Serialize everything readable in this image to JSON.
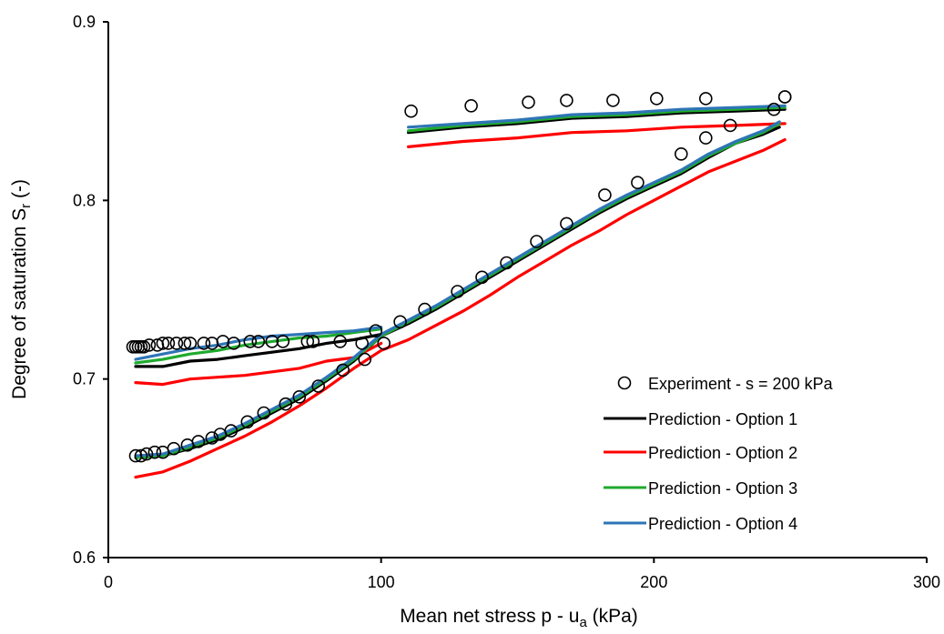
{
  "chart_data": {
    "type": "scatter",
    "xlabel": "Mean net stress p - u",
    "xlabel_sub": "a",
    "xlabel_suffix": " (kPa)",
    "ylabel": "Degree of saturation S",
    "ylabel_sub": "r",
    "ylabel_suffix": " (-)",
    "xlim": [
      0,
      300
    ],
    "ylim": [
      0.6,
      0.9
    ],
    "xticks": [
      0,
      100,
      200,
      300
    ],
    "yticks": [
      0.6,
      0.7,
      0.8,
      0.9
    ],
    "xtick_labels": [
      "0",
      "100",
      "200",
      "300"
    ],
    "ytick_labels": [
      "0.6",
      "0.7",
      "0.8",
      "0.9"
    ],
    "grid": false,
    "legend_position": "bottom-right",
    "experiment": {
      "name": "Experiment - s = 200 kPa",
      "marker": "open-circle",
      "x": [
        9,
        10,
        11,
        12,
        13,
        15,
        18,
        20,
        22,
        25,
        28,
        30,
        35,
        38,
        42,
        46,
        52,
        55,
        60,
        64,
        73,
        75,
        85,
        93,
        98,
        248,
        244,
        228,
        219,
        210,
        194,
        182,
        168,
        157,
        146,
        137,
        128,
        116,
        107,
        101,
        94,
        86,
        77,
        70,
        65,
        57,
        51,
        45,
        41,
        38,
        33,
        29,
        24,
        20,
        17,
        14,
        12,
        10,
        111,
        133,
        154,
        168,
        185,
        201,
        219,
        248
      ],
      "y": [
        0.718,
        0.718,
        0.718,
        0.718,
        0.718,
        0.719,
        0.719,
        0.72,
        0.72,
        0.72,
        0.72,
        0.72,
        0.72,
        0.72,
        0.721,
        0.72,
        0.721,
        0.721,
        0.721,
        0.721,
        0.721,
        0.721,
        0.721,
        0.72,
        0.727,
        0.858,
        0.851,
        0.842,
        0.835,
        0.826,
        0.81,
        0.803,
        0.787,
        0.777,
        0.765,
        0.757,
        0.749,
        0.739,
        0.732,
        0.72,
        0.711,
        0.705,
        0.696,
        0.69,
        0.686,
        0.681,
        0.676,
        0.671,
        0.669,
        0.667,
        0.665,
        0.663,
        0.661,
        0.659,
        0.659,
        0.658,
        0.657,
        0.657,
        0.85,
        0.853,
        0.855,
        0.856,
        0.856,
        0.857,
        0.857,
        0.858
      ]
    },
    "series": [
      {
        "name": "Prediction - Option 1",
        "color": "#000000",
        "segments": [
          {
            "x": [
              10,
              20,
              30,
              40,
              50,
              60,
              70,
              80,
              90,
              100
            ],
            "y": [
              0.707,
              0.707,
              0.71,
              0.711,
              0.713,
              0.715,
              0.717,
              0.72,
              0.722,
              0.725
            ]
          },
          {
            "x": [
              10,
              20,
              30,
              40,
              50,
              60,
              70,
              80,
              90,
              100,
              110,
              120,
              130,
              140,
              150,
              160,
              170,
              180,
              190,
              200,
              210,
              220,
              230,
              240,
              246
            ],
            "y": [
              0.656,
              0.657,
              0.661,
              0.666,
              0.673,
              0.681,
              0.689,
              0.699,
              0.71,
              0.724,
              0.731,
              0.739,
              0.748,
              0.757,
              0.766,
              0.775,
              0.784,
              0.793,
              0.801,
              0.808,
              0.815,
              0.824,
              0.832,
              0.837,
              0.841
            ]
          },
          {
            "x": [
              110,
              130,
              150,
              170,
              190,
              210,
              230,
              248
            ],
            "y": [
              0.838,
              0.841,
              0.843,
              0.846,
              0.847,
              0.849,
              0.85,
              0.851
            ]
          }
        ]
      },
      {
        "name": "Prediction - Option 2",
        "color": "#ff0000",
        "segments": [
          {
            "x": [
              10,
              20,
              30,
              40,
              50,
              60,
              70,
              80,
              90,
              100
            ],
            "y": [
              0.698,
              0.697,
              0.7,
              0.701,
              0.702,
              0.704,
              0.706,
              0.71,
              0.712,
              0.72
            ]
          },
          {
            "x": [
              10,
              20,
              30,
              40,
              50,
              60,
              70,
              80,
              90,
              100,
              110,
              120,
              130,
              140,
              150,
              160,
              170,
              180,
              190,
              200,
              210,
              220,
              230,
              240,
              248
            ],
            "y": [
              0.645,
              0.648,
              0.654,
              0.661,
              0.668,
              0.676,
              0.685,
              0.695,
              0.706,
              0.716,
              0.722,
              0.73,
              0.738,
              0.747,
              0.757,
              0.766,
              0.775,
              0.783,
              0.792,
              0.8,
              0.808,
              0.816,
              0.822,
              0.828,
              0.834
            ]
          },
          {
            "x": [
              110,
              130,
              150,
              170,
              190,
              210,
              230,
              248
            ],
            "y": [
              0.83,
              0.833,
              0.835,
              0.838,
              0.839,
              0.841,
              0.842,
              0.843
            ]
          }
        ]
      },
      {
        "name": "Prediction - Option 3",
        "color": "#1faa2e",
        "segments": [
          {
            "x": [
              10,
              20,
              30,
              40,
              50,
              60,
              70,
              80,
              90,
              100
            ],
            "y": [
              0.709,
              0.711,
              0.714,
              0.716,
              0.719,
              0.721,
              0.723,
              0.724,
              0.726,
              0.728
            ]
          },
          {
            "x": [
              10,
              20,
              30,
              40,
              50,
              60,
              70,
              80,
              90,
              100,
              110,
              120,
              130,
              140,
              150,
              160,
              170,
              180,
              190,
              200,
              210,
              220,
              230,
              240,
              246
            ],
            "y": [
              0.656,
              0.657,
              0.662,
              0.667,
              0.674,
              0.682,
              0.69,
              0.7,
              0.711,
              0.724,
              0.732,
              0.74,
              0.749,
              0.758,
              0.767,
              0.776,
              0.785,
              0.794,
              0.802,
              0.809,
              0.816,
              0.825,
              0.832,
              0.838,
              0.843
            ]
          },
          {
            "x": [
              110,
              130,
              150,
              170,
              190,
              210,
              230,
              248
            ],
            "y": [
              0.839,
              0.842,
              0.844,
              0.847,
              0.848,
              0.85,
              0.851,
              0.852
            ]
          }
        ]
      },
      {
        "name": "Prediction - Option 4",
        "color": "#2e75b6",
        "segments": [
          {
            "x": [
              10,
              20,
              30,
              40,
              50,
              60,
              70,
              80,
              90,
              100
            ],
            "y": [
              0.711,
              0.714,
              0.717,
              0.719,
              0.722,
              0.724,
              0.725,
              0.726,
              0.727,
              0.729
            ]
          },
          {
            "x": [
              10,
              20,
              30,
              40,
              50,
              60,
              70,
              80,
              90,
              100,
              110,
              120,
              130,
              140,
              150,
              160,
              170,
              180,
              190,
              200,
              210,
              220,
              230,
              240,
              246
            ],
            "y": [
              0.657,
              0.658,
              0.663,
              0.668,
              0.675,
              0.683,
              0.691,
              0.701,
              0.712,
              0.725,
              0.733,
              0.741,
              0.75,
              0.759,
              0.768,
              0.777,
              0.786,
              0.795,
              0.803,
              0.81,
              0.817,
              0.826,
              0.833,
              0.839,
              0.844
            ]
          },
          {
            "x": [
              110,
              130,
              150,
              170,
              190,
              210,
              230,
              248
            ],
            "y": [
              0.841,
              0.843,
              0.845,
              0.848,
              0.849,
              0.851,
              0.852,
              0.853
            ]
          }
        ]
      }
    ]
  }
}
